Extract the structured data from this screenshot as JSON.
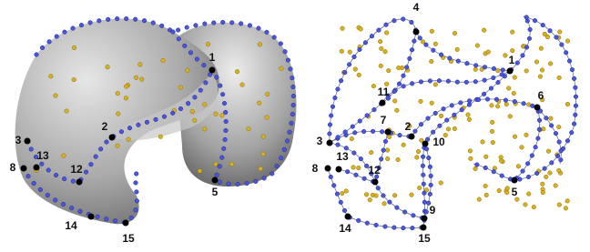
{
  "left_view": {
    "landmarks": [
      {
        "label": 1
      },
      {
        "label": 2
      },
      {
        "label": 3
      },
      {
        "label": 8
      },
      {
        "label": 13
      },
      {
        "label": 12
      },
      {
        "label": 14
      },
      {
        "label": 15
      },
      {
        "label": 5
      }
    ]
  },
  "right_view": {
    "landmarks": [
      {
        "label": 4
      },
      {
        "label": 1
      },
      {
        "label": 11
      },
      {
        "label": 6
      },
      {
        "label": 7
      },
      {
        "label": 2
      },
      {
        "label": 10
      },
      {
        "label": 3
      },
      {
        "label": 8
      },
      {
        "label": 13
      },
      {
        "label": 12
      },
      {
        "label": 9
      },
      {
        "label": 14
      },
      {
        "label": 15
      },
      {
        "label": 5
      }
    ]
  }
}
